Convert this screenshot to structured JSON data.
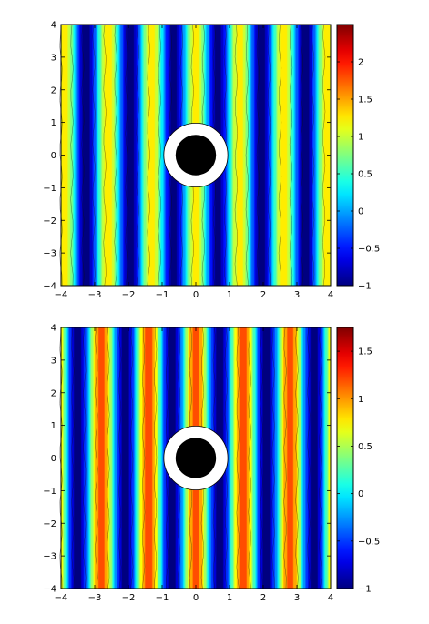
{
  "chart_data": [
    {
      "type": "heatmap",
      "title": "",
      "xlabel": "",
      "ylabel": "",
      "xlim": [
        -4,
        4
      ],
      "ylim": [
        -4,
        4
      ],
      "x_ticks": [
        "−4",
        "−3",
        "−2",
        "−1",
        "0",
        "1",
        "2",
        "3",
        "4"
      ],
      "y_ticks": [
        "−4",
        "−3",
        "−2",
        "−1",
        "0",
        "1",
        "2",
        "3",
        "4"
      ],
      "colorbar": {
        "range": [
          -1,
          2.5
        ],
        "ticks": [
          {
            "value": 2,
            "label": "2"
          },
          {
            "value": 1.5,
            "label": "1.5"
          },
          {
            "value": 1,
            "label": "1"
          },
          {
            "value": 0.5,
            "label": "0.5"
          },
          {
            "value": 0,
            "label": "0"
          },
          {
            "value": -0.5,
            "label": "−0.5"
          },
          {
            "value": -1,
            "label": "−1"
          }
        ]
      },
      "field": {
        "description": "vertical standing-wave stripes",
        "wavelength": 1.3,
        "phase": 0.0,
        "min": -1,
        "max": 1.25
      },
      "obstacle": {
        "center": [
          0,
          0
        ],
        "outer_radius": 0.95,
        "inner_radius": 0.6
      }
    },
    {
      "type": "heatmap",
      "title": "",
      "xlabel": "",
      "ylabel": "",
      "xlim": [
        -4,
        4
      ],
      "ylim": [
        -4,
        4
      ],
      "x_ticks": [
        "−4",
        "−3",
        "−2",
        "−1",
        "0",
        "1",
        "2",
        "3",
        "4"
      ],
      "y_ticks": [
        "−4",
        "−3",
        "−2",
        "−1",
        "0",
        "1",
        "2",
        "3",
        "4"
      ],
      "colorbar": {
        "range": [
          -1,
          1.75
        ],
        "ticks": [
          {
            "value": 1.5,
            "label": "1.5"
          },
          {
            "value": 1,
            "label": "1"
          },
          {
            "value": 0.5,
            "label": "0.5"
          },
          {
            "value": 0,
            "label": "0"
          },
          {
            "value": -0.5,
            "label": "−0.5"
          },
          {
            "value": -1,
            "label": "−1"
          }
        ]
      },
      "field": {
        "description": "vertical standing-wave stripes",
        "wavelength": 1.4,
        "phase": 0.0,
        "min": -1,
        "max": 1.2
      },
      "obstacle": {
        "center": [
          0,
          0
        ],
        "outer_radius": 0.95,
        "inner_radius": 0.6
      }
    }
  ]
}
